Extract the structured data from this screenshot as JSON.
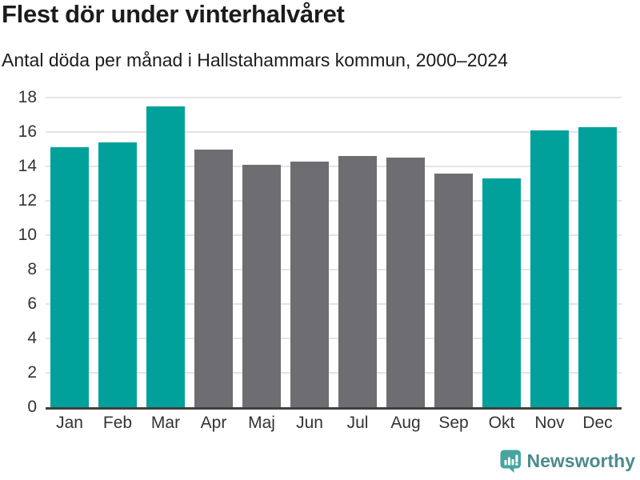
{
  "header": {
    "title": "Flest dör under vinterhalvåret",
    "subtitle": "Antal döda per månad i Hallstahammars kommun, 2000–2024"
  },
  "chart_data": {
    "type": "bar",
    "title": "Flest dör under vinterhalvåret",
    "subtitle": "Antal döda per månad i Hallstahammars kommun, 2000–2024",
    "categories": [
      "Jan",
      "Feb",
      "Mar",
      "Apr",
      "Maj",
      "Jun",
      "Jul",
      "Aug",
      "Sep",
      "Okt",
      "Nov",
      "Dec"
    ],
    "values": [
      15.1,
      15.4,
      17.5,
      15.0,
      14.1,
      14.3,
      14.6,
      14.5,
      13.6,
      13.3,
      16.1,
      16.3
    ],
    "bar_colors": [
      "#00a19a",
      "#00a19a",
      "#00a19a",
      "#6d6d72",
      "#6d6d72",
      "#6d6d72",
      "#6d6d72",
      "#6d6d72",
      "#6d6d72",
      "#00a19a",
      "#00a19a",
      "#00a19a"
    ],
    "xlabel": "",
    "ylabel": "",
    "ylim": [
      0,
      18
    ],
    "yticks": [
      0,
      2,
      4,
      6,
      8,
      10,
      12,
      14,
      16,
      18
    ],
    "grid": true,
    "legend_position": "none"
  },
  "colors": {
    "winter_bar": "#00a19a",
    "summer_bar": "#6d6d72",
    "gridline": "#e4e4e4",
    "axis_line": "#404040",
    "text": "#1c1c1c",
    "tick_text": "#333333",
    "brand_text": "#4a8b8e",
    "logo_background": "#45a5a0"
  },
  "footer": {
    "brand": "Newsworthy",
    "logo_icon": "speech-bubble-bar-chart-icon"
  }
}
